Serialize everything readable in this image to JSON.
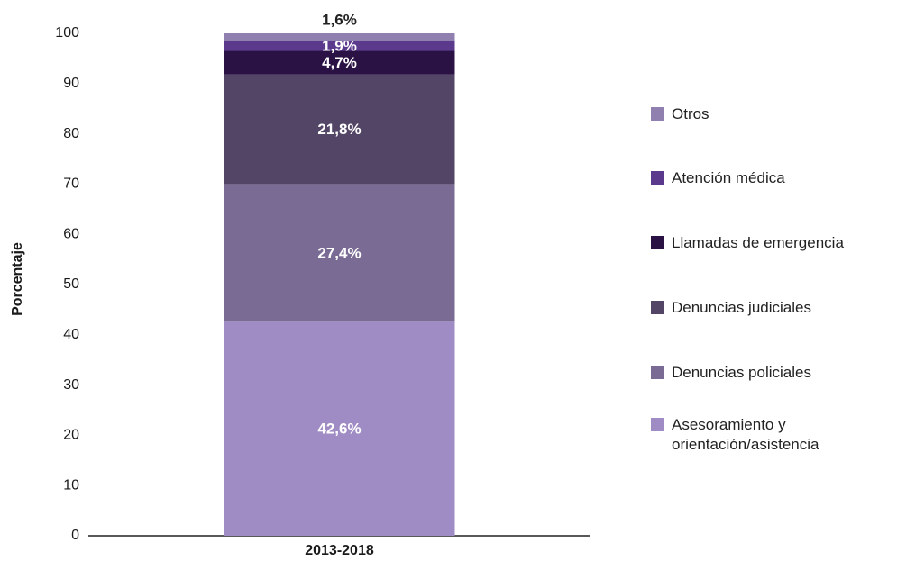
{
  "chart_data": {
    "type": "stacked_bar",
    "categories": [
      "2013-2018"
    ],
    "y_label": "Porcentaje",
    "ylim": [
      0,
      100
    ],
    "yticks": [
      0,
      10,
      20,
      30,
      40,
      50,
      60,
      70,
      80,
      90,
      100
    ],
    "grid": false,
    "series": [
      {
        "name": "Asesoramiento y orientación/asistencia",
        "color": "#a08cc4",
        "values": [
          42.6
        ],
        "value_labels": [
          "42,6%"
        ]
      },
      {
        "name": "Denuncias policiales",
        "color": "#7a6b94",
        "values": [
          27.4
        ],
        "value_labels": [
          "27,4%"
        ]
      },
      {
        "name": "Denuncias judiciales",
        "color": "#524566",
        "values": [
          21.8
        ],
        "value_labels": [
          "21,8%"
        ]
      },
      {
        "name": "Llamadas de emergencia",
        "color": "#2a1245",
        "values": [
          4.7
        ],
        "value_labels": [
          "4,7%"
        ]
      },
      {
        "name": "Atención médica",
        "color": "#5b3a8e",
        "values": [
          1.9
        ],
        "value_labels": [
          "1,9%"
        ]
      },
      {
        "name": "Otros",
        "color": "#9080b0",
        "values": [
          1.6
        ],
        "value_labels": [
          "1,6%"
        ]
      }
    ]
  }
}
